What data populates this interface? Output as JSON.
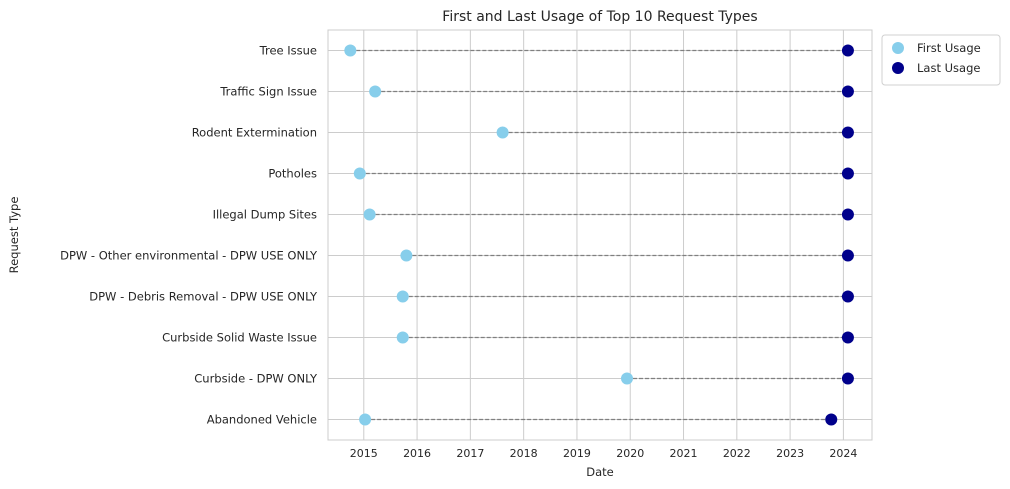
{
  "chart_data": {
    "type": "scatter",
    "title": "First and Last Usage of Top 10 Request Types",
    "xlabel": "Date",
    "ylabel": "Request Type",
    "xlim": [
      "2014-05-01",
      "2024-07-15"
    ],
    "xticks": [
      "2015",
      "2016",
      "2017",
      "2018",
      "2019",
      "2020",
      "2021",
      "2022",
      "2023",
      "2024"
    ],
    "grid": true,
    "legend_position": "upper-right-outside",
    "categories": [
      "Tree Issue",
      "Traffic Sign Issue",
      "Rodent Extermination",
      "Potholes",
      "Illegal Dump Sites",
      "DPW - Other environmental - DPW USE ONLY",
      "DPW - Debris Removal - DPW USE ONLY",
      "Curbside Solid Waste Issue",
      "Curbside - DPW ONLY",
      "Abandoned Vehicle"
    ],
    "series": [
      {
        "name": "First Usage",
        "color": "#87ceeb",
        "values": [
          "2014-10-01",
          "2015-03-20",
          "2017-08-10",
          "2014-12-05",
          "2015-02-10",
          "2015-10-20",
          "2015-09-25",
          "2015-09-25",
          "2019-12-10",
          "2015-01-10"
        ]
      },
      {
        "name": "Last Usage",
        "color": "#00008b",
        "values": [
          "2024-02-01",
          "2024-02-01",
          "2024-02-01",
          "2024-02-01",
          "2024-02-01",
          "2024-02-01",
          "2024-02-01",
          "2024-02-01",
          "2024-02-01",
          "2023-10-10"
        ]
      }
    ],
    "connector_color": "#808080"
  }
}
